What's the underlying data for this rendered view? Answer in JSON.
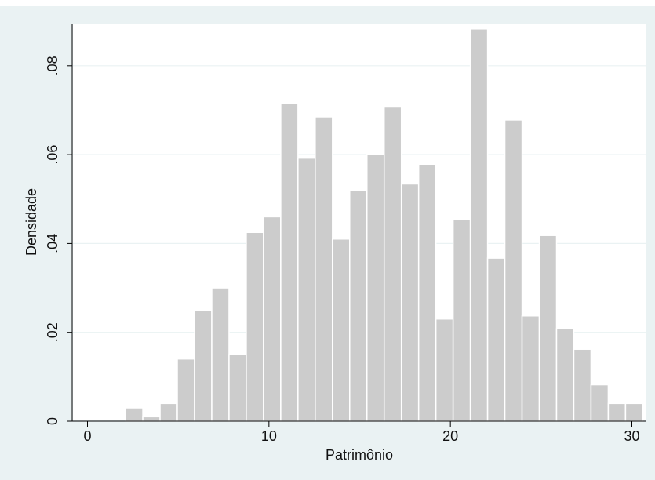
{
  "chart_data": {
    "type": "bar",
    "subtype": "histogram",
    "xlabel": "Patrimônio",
    "ylabel": "Densidade",
    "xlim": [
      -0.8,
      30.8
    ],
    "ylim": [
      0,
      0.0895
    ],
    "bin_width": 0.95,
    "x_ticks": [
      {
        "value": 0,
        "label": "0"
      },
      {
        "value": 10,
        "label": "10"
      },
      {
        "value": 20,
        "label": "20"
      },
      {
        "value": 30,
        "label": "30"
      }
    ],
    "y_ticks": [
      {
        "value": 0,
        "label": "0"
      },
      {
        "value": 0.02,
        "label": ".02"
      },
      {
        "value": 0.04,
        "label": ".04"
      },
      {
        "value": 0.06,
        "label": ".06"
      },
      {
        "value": 0.08,
        "label": ".08"
      }
    ],
    "bin_starts": [
      2.1,
      3.05,
      4.0,
      4.95,
      5.9,
      6.85,
      7.8,
      8.75,
      9.7,
      10.65,
      11.6,
      12.55,
      13.5,
      14.45,
      15.4,
      16.35,
      17.3,
      18.25,
      19.2,
      20.15,
      21.1,
      22.05,
      23.0,
      23.95,
      24.9,
      25.85,
      26.8,
      27.75,
      28.7,
      29.65
    ],
    "values": [
      0.003,
      0.001,
      0.004,
      0.014,
      0.025,
      0.03,
      0.015,
      0.0425,
      0.046,
      0.0715,
      0.0592,
      0.0685,
      0.041,
      0.052,
      0.06,
      0.0707,
      0.0534,
      0.0577,
      0.023,
      0.0455,
      0.0883,
      0.0367,
      0.0678,
      0.0237,
      0.0418,
      0.0208,
      0.0162,
      0.0082,
      0.004,
      0.004
    ],
    "grid": true,
    "colors": {
      "bar_fill": "#cccccc",
      "bar_stroke": "#ffffff",
      "plot_background": "#ffffff",
      "outer_background": "#eaf2f3",
      "grid": "#eaf2f3",
      "axis": "#000000"
    }
  }
}
